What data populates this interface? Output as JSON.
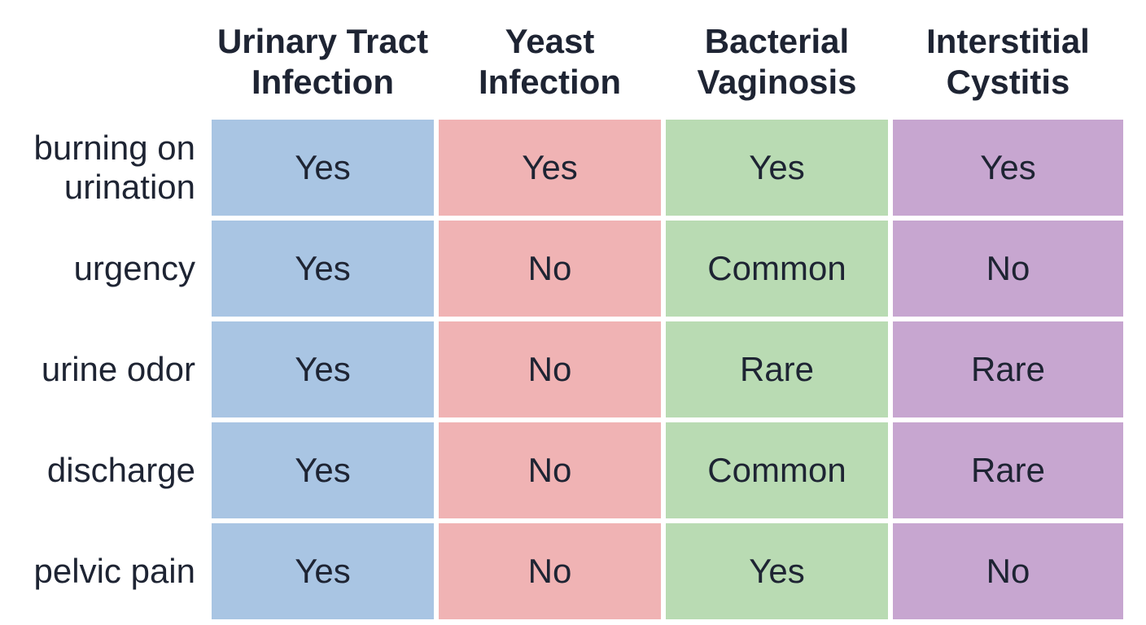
{
  "chart_data": {
    "type": "table",
    "columns": [
      {
        "label": "Urinary Tract\nInfection",
        "color": "#a9c5e3"
      },
      {
        "label": "Yeast\nInfection",
        "color": "#f0b3b4"
      },
      {
        "label": "Bacterial\nVaginosis",
        "color": "#b9dbb3"
      },
      {
        "label": "Interstitial\nCystitis",
        "color": "#c7a6d0"
      }
    ],
    "rows": [
      {
        "label": "burning on\nurination",
        "values": [
          "Yes",
          "Yes",
          "Yes",
          "Yes"
        ]
      },
      {
        "label": "urgency",
        "values": [
          "Yes",
          "No",
          "Common",
          "No"
        ]
      },
      {
        "label": "urine odor",
        "values": [
          "Yes",
          "No",
          "Rare",
          "Rare"
        ]
      },
      {
        "label": "discharge",
        "values": [
          "Yes",
          "No",
          "Common",
          "Rare"
        ]
      },
      {
        "label": "pelvic pain",
        "values": [
          "Yes",
          "No",
          "Yes",
          "No"
        ]
      }
    ]
  }
}
